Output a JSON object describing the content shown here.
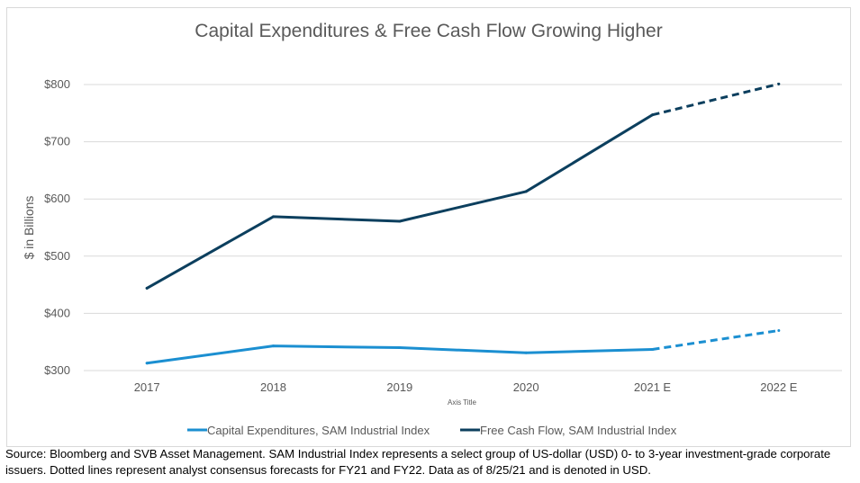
{
  "chart_data": {
    "type": "line",
    "title": "Capital Expenditures & Free Cash Flow Growing Higher",
    "xlabel": "Axis Title",
    "ylabel": "$ in Billions",
    "categories": [
      "2017",
      "2018",
      "2019",
      "2020",
      "2021 E",
      "2022 E"
    ],
    "y_ticks": [
      "$300",
      "$400",
      "$500",
      "$600",
      "$700",
      "$800"
    ],
    "ylim": [
      300,
      800
    ],
    "grid": true,
    "legend_position": "bottom",
    "series": [
      {
        "name": "Capital Expenditures, SAM Industrial Index",
        "color": "#1b8fd1",
        "values": [
          313,
          343,
          340,
          331,
          337,
          370
        ],
        "forecast_from_index": 4
      },
      {
        "name": "Free Cash Flow, SAM Industrial Index",
        "color": "#0c3f5e",
        "values": [
          444,
          569,
          561,
          613,
          747,
          801
        ],
        "forecast_from_index": 4
      }
    ]
  },
  "source_note": "Source: Bloomberg and SVB Asset Management. SAM Industrial Index represents a select group of US-dollar (USD) 0- to 3-year investment-grade corporate issuers. Dotted lines represent analyst consensus forecasts for FY21 and FY22. Data as of 8/25/21 and is denoted in USD."
}
